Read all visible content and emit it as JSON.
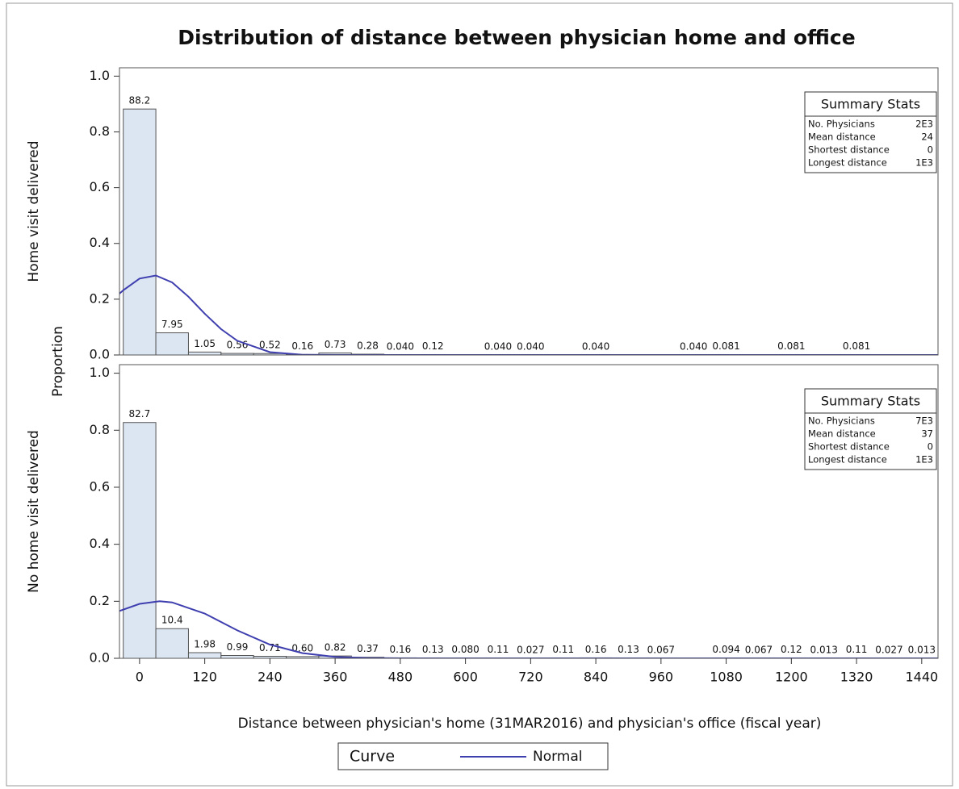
{
  "chart_data": {
    "type": "histogram",
    "title": "Distribution of distance between physician home and office",
    "xlabel": "Distance between physician's home (31MAR2016) and physician's office (fiscal year)",
    "ylabel": "Proportion",
    "xlim": [
      -37,
      1470
    ],
    "xticks": [
      0,
      120,
      240,
      360,
      480,
      600,
      720,
      840,
      960,
      1080,
      1200,
      1320,
      1440
    ],
    "bar_color": "#dce6f2",
    "curve_color": "#3f3fb0",
    "legend_title": "Curve",
    "curve_name": "Normal",
    "panels": [
      {
        "label": "Home visit delivered",
        "x": [
          0,
          60,
          120,
          180,
          240,
          300,
          360,
          420,
          480,
          540,
          660,
          720,
          840,
          1020,
          1080,
          1200,
          1320
        ],
        "values": [
          0.882,
          0.0795,
          0.0105,
          0.0056,
          0.0052,
          0.0016,
          0.0073,
          0.0028,
          0.0004,
          0.0012,
          0.0004,
          0.0004,
          0.0004,
          0.0004,
          0.00081,
          0.00081,
          0.00081
        ],
        "value_labels": [
          "88.2",
          "7.95",
          "1.05",
          "0.56",
          "0.52",
          "0.16",
          "0.73",
          "0.28",
          "0.040",
          "0.12",
          "0.040",
          "0.040",
          "0.040",
          "0.040",
          "0.081",
          "0.081",
          "0.081"
        ],
        "ylim": [
          0,
          1.03
        ],
        "yticks": [
          {
            "value": 0,
            "label": "0.0"
          },
          0.2,
          0.4,
          0.6,
          0.8,
          {
            "value": 1,
            "label": "1.0"
          }
        ],
        "stats": {
          "title": "Summary Stats",
          "rows": [
            [
              "No. Physicians",
              "2E3"
            ],
            [
              "Mean distance",
              "24"
            ],
            [
              "Shortest distance",
              "0"
            ],
            [
              "Longest distance",
              "1E3"
            ]
          ]
        },
        "curve": {
          "x": [
            -37,
            -30,
            0,
            30,
            60,
            90,
            120,
            150,
            180,
            240,
            300,
            360,
            1470
          ],
          "values": [
            0.22,
            0.232,
            0.274,
            0.285,
            0.26,
            0.209,
            0.148,
            0.093,
            0.051,
            0.01,
            0.001,
            0,
            0
          ]
        }
      },
      {
        "label": "No home visit delivered",
        "x": [
          0,
          60,
          120,
          180,
          240,
          300,
          360,
          420,
          480,
          540,
          600,
          660,
          720,
          780,
          840,
          900,
          960,
          1080,
          1140,
          1200,
          1260,
          1320,
          1380,
          1440
        ],
        "values": [
          0.827,
          0.104,
          0.0198,
          0.0099,
          0.0071,
          0.006,
          0.0082,
          0.0037,
          0.0016,
          0.0013,
          0.0008,
          0.0011,
          0.00027,
          0.0011,
          0.0016,
          0.0013,
          0.00067,
          0.00094,
          0.00067,
          0.0012,
          0.00013,
          0.0011,
          0.00027,
          0.00013
        ],
        "value_labels": [
          "82.7",
          "10.4",
          "1.98",
          "0.99",
          "0.71",
          "0.60",
          "0.82",
          "0.37",
          "0.16",
          "0.13",
          "0.080",
          "0.11",
          "0.027",
          "0.11",
          "0.16",
          "0.13",
          "0.067",
          "0.094",
          "0.067",
          "0.12",
          "0.013",
          "0.11",
          "0.027",
          "0.013"
        ],
        "ylim": [
          0,
          1.03
        ],
        "yticks": [
          {
            "value": 0,
            "label": "0.0"
          },
          0.2,
          0.4,
          0.6,
          0.8,
          {
            "value": 1,
            "label": "1.0"
          }
        ],
        "stats": {
          "title": "Summary Stats",
          "rows": [
            [
              "No. Physicians",
              "7E3"
            ],
            [
              "Mean distance",
              "37"
            ],
            [
              "Shortest distance",
              "0"
            ],
            [
              "Longest distance",
              "1E3"
            ]
          ]
        },
        "curve": {
          "x": [
            -37,
            0,
            37,
            60,
            120,
            180,
            240,
            300,
            360,
            420,
            480,
            1470
          ],
          "values": [
            0.166,
            0.191,
            0.2,
            0.196,
            0.157,
            0.098,
            0.048,
            0.018,
            0.005,
            0.001,
            0,
            0
          ]
        }
      }
    ]
  }
}
